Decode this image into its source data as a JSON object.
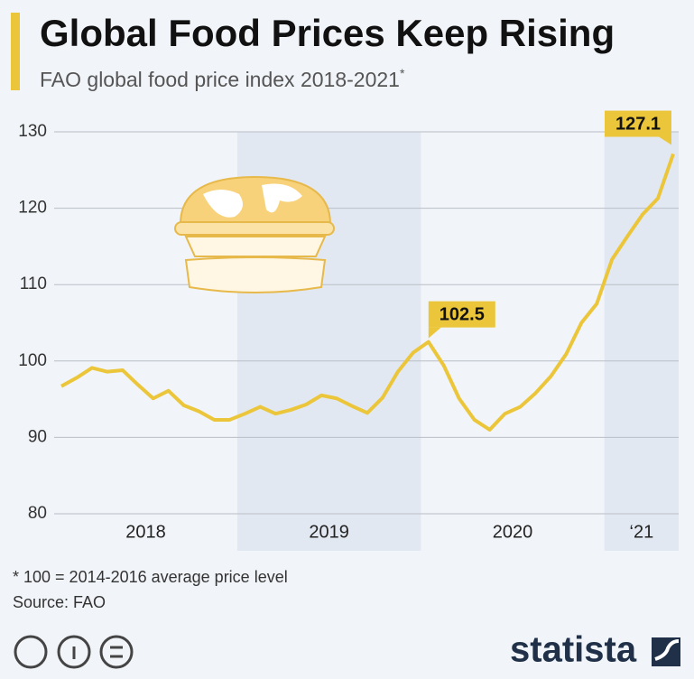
{
  "chart_data": {
    "type": "line",
    "title": "Global Food Prices Keep Rising",
    "subtitle": "FAO global food price index 2018-2021",
    "subtitle_mark": "*",
    "footnote": "* 100 = 2014-2016 average price level",
    "source": "Source: FAO",
    "brand": "statista",
    "categories": [
      "2018",
      null,
      null,
      null,
      null,
      null,
      null,
      null,
      null,
      null,
      null,
      null,
      "2019",
      null,
      null,
      null,
      null,
      null,
      null,
      null,
      null,
      null,
      null,
      null,
      "2020",
      null,
      null,
      null,
      null,
      null,
      null,
      null,
      null,
      null,
      null,
      null,
      "‘21",
      null,
      null,
      null,
      null
    ],
    "series": [
      {
        "name": "FAO global food price index",
        "color": "#ecc63a",
        "values": [
          96.7,
          97.8,
          99.1,
          98.6,
          98.8,
          96.9,
          95.1,
          96.1,
          94.2,
          93.4,
          92.3,
          92.3,
          93.1,
          94.0,
          93.1,
          93.6,
          94.3,
          95.5,
          95.1,
          94.1,
          93.2,
          95.2,
          98.6,
          101.1,
          102.5,
          99.4,
          95.1,
          92.3,
          91.0,
          93.1,
          94.0,
          95.8,
          98.0,
          100.9,
          105.0,
          107.5,
          113.3,
          116.3,
          119.2,
          121.3,
          127.1
        ]
      }
    ],
    "value_labels": [
      null,
      null,
      null,
      null,
      null,
      null,
      null,
      null,
      null,
      null,
      null,
      null,
      null,
      null,
      null,
      null,
      null,
      null,
      null,
      null,
      null,
      null,
      null,
      null,
      "102.5",
      null,
      null,
      null,
      null,
      null,
      null,
      null,
      null,
      null,
      null,
      null,
      null,
      null,
      null,
      null,
      "127.1"
    ],
    "ylim": [
      80,
      130
    ],
    "yticks": [
      80,
      90,
      100,
      110,
      120,
      130
    ],
    "grid": true
  }
}
